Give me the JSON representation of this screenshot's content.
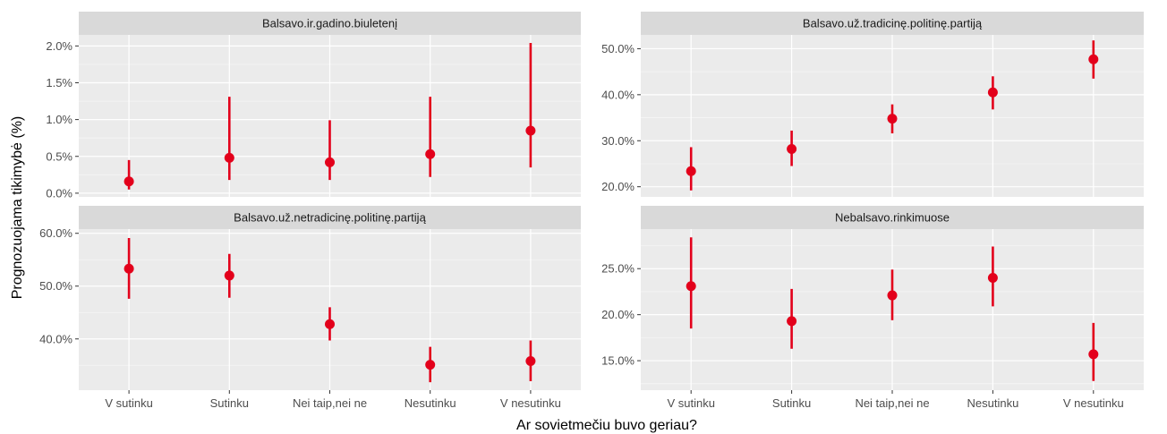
{
  "chart_data": {
    "type": "scatter",
    "subtype": "pointrange-facets",
    "xlabel": "Ar sovietmečiu buvo geriau?",
    "ylabel": "Prognozuojama tikimybė (%)",
    "categories": [
      "V sutinku",
      "Sutinku",
      "Nei taip,nei ne",
      "Nesutinku",
      "V nesutinku"
    ],
    "colors": {
      "point": "#e3001b",
      "panel": "#ebebeb",
      "strip": "#d9d9d9",
      "grid_major": "#ffffff",
      "grid_minor": "#f5f5f5"
    },
    "grid": true,
    "panels": [
      {
        "title": "Balsavo.ir.gadino.biuletenį",
        "ylim": [
          -0.05,
          2.15
        ],
        "yticks": [
          0,
          0.5,
          1.0,
          1.5,
          2.0
        ],
        "ytick_labels": [
          "0.0%",
          "0.5%",
          "1.0%",
          "1.5%",
          "2.0%"
        ],
        "estimate": [
          0.16,
          0.48,
          0.42,
          0.53,
          0.85
        ],
        "lower": [
          0.05,
          0.18,
          0.18,
          0.22,
          0.35
        ],
        "upper": [
          0.45,
          1.31,
          0.99,
          1.31,
          2.04
        ]
      },
      {
        "title": "Balsavo.už.tradicinę.politinę.partiją",
        "ylim": [
          17.8,
          53.0
        ],
        "yticks": [
          20,
          30,
          40,
          50
        ],
        "ytick_labels": [
          "20.0%",
          "30.0%",
          "40.0%",
          "50.0%"
        ],
        "estimate": [
          23.4,
          28.2,
          34.8,
          40.5,
          47.7
        ],
        "lower": [
          19.2,
          24.5,
          31.6,
          36.8,
          43.5
        ],
        "upper": [
          28.6,
          32.2,
          37.9,
          44.0,
          51.8
        ]
      },
      {
        "title": "Balsavo.už.netradicinę.politinę.partiją",
        "ylim": [
          30.3,
          60.8
        ],
        "yticks": [
          40,
          50,
          60
        ],
        "ytick_labels": [
          "40.0%",
          "50.0%",
          "60.0%"
        ],
        "estimate": [
          53.3,
          52.0,
          42.8,
          35.1,
          35.8
        ],
        "lower": [
          47.6,
          47.8,
          39.7,
          31.8,
          32.0
        ],
        "upper": [
          59.1,
          56.1,
          46.0,
          38.5,
          39.7
        ]
      },
      {
        "title": "Nebalsavo.rinkimuose",
        "ylim": [
          11.8,
          29.3
        ],
        "yticks": [
          15,
          20,
          25
        ],
        "ytick_labels": [
          "15.0%",
          "20.0%",
          "25.0%"
        ],
        "estimate": [
          23.1,
          19.3,
          22.1,
          24.0,
          15.7
        ],
        "lower": [
          18.5,
          16.3,
          19.4,
          20.9,
          12.8
        ],
        "upper": [
          28.4,
          22.8,
          24.9,
          27.4,
          19.1
        ]
      }
    ]
  }
}
